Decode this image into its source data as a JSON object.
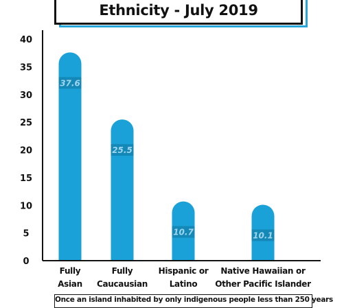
{
  "title": "Ethnicity - July 2019",
  "footer_note": "Once an island inhabited by only indigenous people less than 250 years",
  "chart_data": {
    "type": "bar",
    "categories": [
      [
        "Fully",
        "Asian"
      ],
      [
        "Fully",
        "Caucausian"
      ],
      [
        "Hispanic or",
        "Latino"
      ],
      [
        "Native Hawaiian or",
        "Other Pacific Islander"
      ]
    ],
    "values": [
      37.6,
      25.5,
      10.7,
      10.1
    ],
    "value_labels": [
      "37.6",
      "25.5",
      "10.7",
      "10.1"
    ],
    "y_ticks": [
      "0",
      "5",
      "10",
      "15",
      "20",
      "25",
      "30",
      "35",
      "40"
    ],
    "ylim": [
      0,
      40
    ],
    "bar_color": "#1aa1d8",
    "label_band_color": "#1489b8",
    "label_text_color": "#9fd6ee"
  }
}
